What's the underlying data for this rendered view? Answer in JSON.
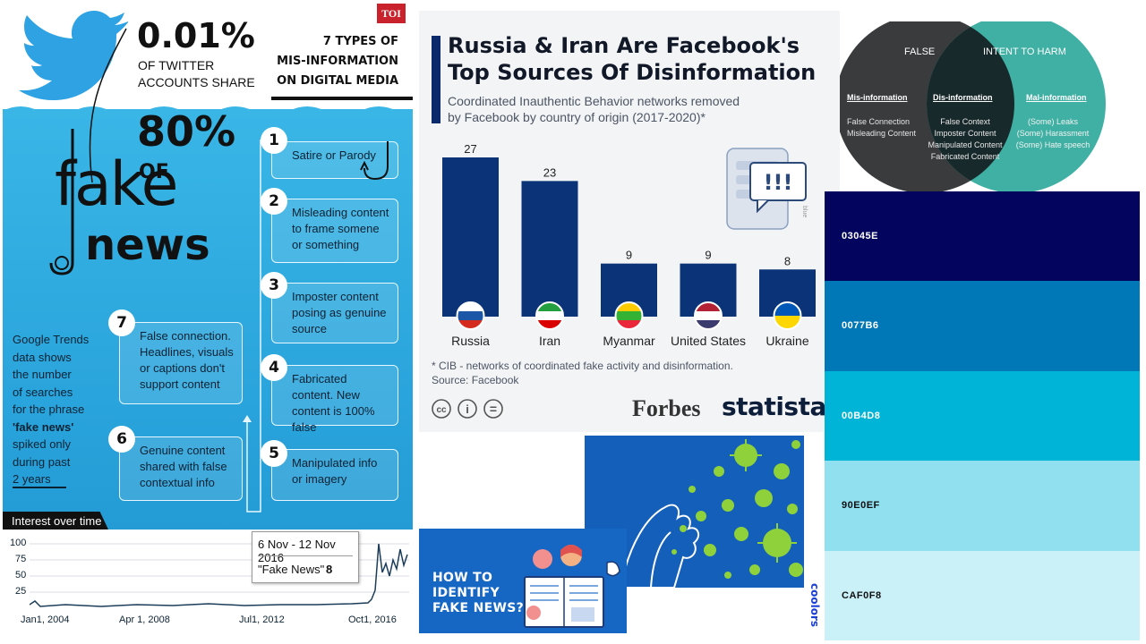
{
  "toi": {
    "logo": "TOI",
    "stat_top": "0.01%",
    "stat_top_caption_1": "OF TWITTER",
    "stat_top_caption_2": "ACCOUNTS SHARE",
    "stat_mid": "80%",
    "stat_mid_caption": "OF",
    "headline_1": "fake",
    "headline_2": "news",
    "types_title_1": "7 TYPES OF",
    "types_title_2": "MIS-INFORMATION",
    "types_title_3": "ON DIGITAL MEDIA",
    "steps": [
      {
        "num": "1",
        "text": "Satire or Parody"
      },
      {
        "num": "2",
        "text": "Misleading content to frame somene or something"
      },
      {
        "num": "3",
        "text": "Imposter content posing as genuine source"
      },
      {
        "num": "4",
        "text": "Fabricated content. New content is 100% false"
      },
      {
        "num": "5",
        "text": "Manipulated info or imagery"
      },
      {
        "num": "6",
        "text": "Genuine content shared with false contextual info"
      },
      {
        "num": "7",
        "text": "False connection. Headlines, visuals or captions don't support content"
      }
    ],
    "trends_text_1": "Google Trends",
    "trends_text_2": "data shows",
    "trends_text_3": "the number",
    "trends_text_4": "of searches",
    "trends_text_5": "for the phrase",
    "trends_text_6": "'fake news'",
    "trends_text_7": "spiked only",
    "trends_text_8": "during past",
    "trends_text_9": "2 years",
    "interest_label": "Interest over time",
    "tooltip_date": "6 Nov - 12 Nov 2016",
    "tooltip_term": "\"Fake News\"",
    "tooltip_value": "8",
    "trend_y_ticks": [
      "100",
      "75",
      "50",
      "25"
    ],
    "trend_x_ticks": [
      "Jan1, 2004",
      "Apr 1, 2008",
      "Jul1, 2012",
      "Oct1, 2016"
    ]
  },
  "statista": {
    "title_1": "Russia & Iran Are Facebook's",
    "title_2": "Top Sources Of Disinformation",
    "subtitle_1": "Coordinated Inauthentic Behavior networks removed",
    "subtitle_2": "by Facebook by country of origin (2017-2020)*",
    "footnote": "* CIB - networks of coordinated fake activity and disinformation.",
    "source": "Source: Facebook",
    "forbes": "Forbes",
    "brand": "statista",
    "side_label": "blue",
    "icon_text": "!!!",
    "cc_labels": [
      "cc",
      "i",
      "="
    ],
    "colors": {
      "bar": "#0b3478",
      "accent": "#0b2a6b"
    }
  },
  "chart_data": {
    "type": "bar",
    "categories": [
      "Russia",
      "Iran",
      "Myanmar",
      "United States",
      "Ukraine"
    ],
    "values": [
      27,
      23,
      9,
      9,
      8
    ],
    "title": "Russia & Iran Are Facebook's Top Sources Of Disinformation",
    "subtitle": "Coordinated Inauthentic Behavior networks removed by Facebook by country of origin (2017-2020)*",
    "xlabel": "",
    "ylabel": "",
    "ylim": [
      0,
      27
    ],
    "grid": false
  },
  "venn": {
    "left_title": "FALSE",
    "right_title": "INTENT TO HARM",
    "left_heading": "Mis-information",
    "left_items": [
      "False Connection",
      "Misleading Content"
    ],
    "mid_heading": "Dis-information",
    "mid_items": [
      "False Context",
      "Imposter Content",
      "Manipulated Content",
      "Fabricated Content"
    ],
    "right_heading": "Mal-information",
    "right_items": [
      "(Some) Leaks",
      "(Some) Harassment",
      "(Some) Hate speech"
    ],
    "colors": {
      "left": "#3a3b3d",
      "right": "#3fb0a3",
      "overlap": "#18292b"
    }
  },
  "palette": {
    "swatches": [
      {
        "hex": "03045E",
        "color": "#03045E",
        "text": "#ffffff"
      },
      {
        "hex": "0077B6",
        "color": "#0077B6",
        "text": "#ffffff"
      },
      {
        "hex": "00B4D8",
        "color": "#00B4D8",
        "text": "#ffffff"
      },
      {
        "hex": "90E0EF",
        "color": "#90E0EF",
        "text": "#111111"
      },
      {
        "hex": "CAF0F8",
        "color": "#CAF0F8",
        "text": "#111111"
      }
    ],
    "brand": "coolors"
  },
  "howto": {
    "line_1": "HOW TO",
    "line_2": "IDENTIFY",
    "line_3": "FAKE NEWS?"
  }
}
